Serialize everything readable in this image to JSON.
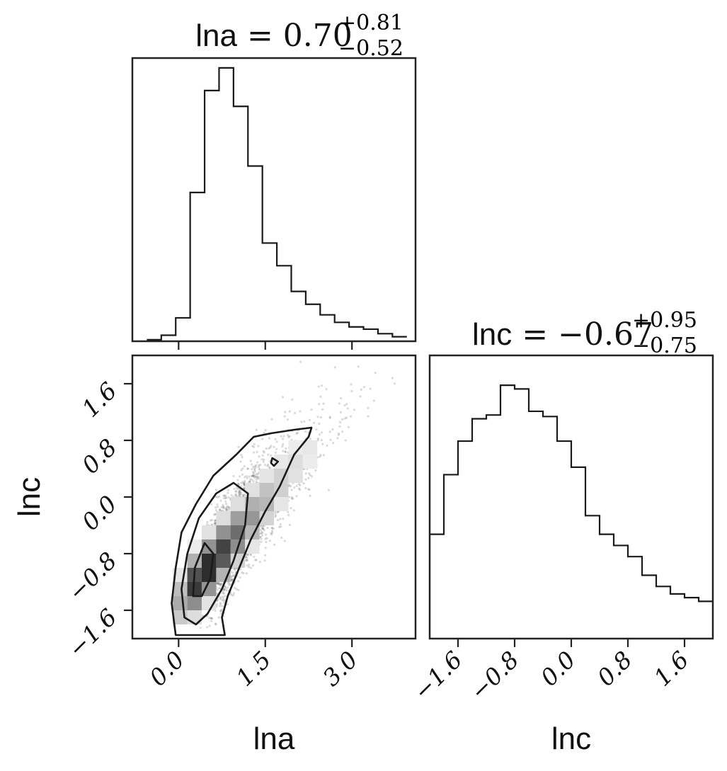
{
  "chart_data": [
    {
      "type": "histogram",
      "panel": "lna-marginal",
      "title_param": "lna",
      "title_value": "0.70",
      "title_plus": "+0.81",
      "title_minus": "−0.52",
      "x_range": [
        -0.8,
        4.1
      ],
      "bin_edges": [
        -0.55,
        -0.3,
        -0.05,
        0.2,
        0.45,
        0.7,
        0.95,
        1.2,
        1.45,
        1.7,
        1.95,
        2.2,
        2.45,
        2.7,
        2.95,
        3.2,
        3.45,
        3.7,
        3.95
      ],
      "counts": [
        2,
        8,
        31,
        197,
        332,
        362,
        311,
        232,
        130,
        100,
        66,
        49,
        35,
        25,
        19,
        16,
        10,
        6
      ],
      "y_max": 375
    },
    {
      "type": "histogram",
      "panel": "lnc-marginal",
      "title_param": "lnc",
      "title_value": "−0.67",
      "title_plus": "+0.95",
      "title_minus": "−0.75",
      "x_range": [
        -2.0,
        2.0
      ],
      "xticks": [
        -1.6,
        -0.8,
        0.0,
        0.8,
        1.6
      ],
      "xtick_labels": [
        "−1.6",
        "−0.8",
        "0.0",
        "0.8",
        "1.6"
      ],
      "xlabel": "lnc",
      "bin_edges": [
        -2.0,
        -1.8,
        -1.6,
        -1.4,
        -1.2,
        -1.0,
        -0.8,
        -0.6,
        -0.4,
        -0.2,
        0.0,
        0.2,
        0.4,
        0.6,
        0.8,
        1.0,
        1.2,
        1.4,
        1.6,
        1.8,
        2.0
      ],
      "counts": [
        140,
        220,
        265,
        295,
        300,
        340,
        335,
        305,
        298,
        265,
        230,
        165,
        140,
        125,
        110,
        85,
        70,
        60,
        55,
        50
      ],
      "y_max": 380
    },
    {
      "type": "scatter",
      "panel": "lna-lnc-joint",
      "description_style": "2D histogram with density contours and scattered samples",
      "x_range": [
        -0.8,
        4.1
      ],
      "y_range": [
        -2.0,
        2.0
      ],
      "xticks": [
        0.0,
        1.5,
        3.0
      ],
      "xtick_labels": [
        "0.0",
        "1.5",
        "3.0"
      ],
      "yticks": [
        -1.6,
        -0.8,
        0.0,
        0.8,
        1.6
      ],
      "ytick_labels": [
        "−1.6",
        "−0.8",
        "0.0",
        "0.8",
        "1.6"
      ],
      "xlabel": "lna",
      "ylabel": "lnc",
      "correlation": 0.8,
      "center": [
        0.7,
        -0.67
      ],
      "contours": [
        [
          [
            -0.05,
            -1.95
          ],
          [
            -0.12,
            -1.5
          ],
          [
            -0.05,
            -1.0
          ],
          [
            0.05,
            -0.5
          ],
          [
            0.3,
            -0.1
          ],
          [
            0.6,
            0.3
          ],
          [
            1.0,
            0.6
          ],
          [
            1.3,
            0.85
          ],
          [
            1.6,
            0.9
          ],
          [
            2.0,
            0.95
          ],
          [
            2.3,
            0.98
          ],
          [
            2.25,
            0.85
          ],
          [
            2.0,
            0.6
          ],
          [
            1.75,
            0.15
          ],
          [
            1.5,
            -0.2
          ],
          [
            1.25,
            -0.6
          ],
          [
            1.05,
            -1.0
          ],
          [
            0.85,
            -1.4
          ],
          [
            0.75,
            -1.7
          ],
          [
            0.8,
            -1.95
          ]
        ],
        [
          [
            0.1,
            -1.7
          ],
          [
            0.05,
            -1.3
          ],
          [
            0.15,
            -0.8
          ],
          [
            0.35,
            -0.3
          ],
          [
            0.65,
            0.05
          ],
          [
            0.95,
            0.2
          ],
          [
            1.2,
            0.05
          ],
          [
            1.15,
            -0.4
          ],
          [
            0.95,
            -0.9
          ],
          [
            0.75,
            -1.3
          ],
          [
            0.5,
            -1.65
          ],
          [
            0.3,
            -1.8
          ]
        ],
        [
          [
            0.25,
            -1.4
          ],
          [
            0.28,
            -1.0
          ],
          [
            0.45,
            -0.65
          ],
          [
            0.6,
            -0.8
          ],
          [
            0.55,
            -1.15
          ],
          [
            0.4,
            -1.4
          ]
        ],
        [
          [
            1.62,
            0.55
          ],
          [
            1.72,
            0.5
          ],
          [
            1.65,
            0.44
          ],
          [
            1.6,
            0.48
          ]
        ]
      ]
    }
  ]
}
